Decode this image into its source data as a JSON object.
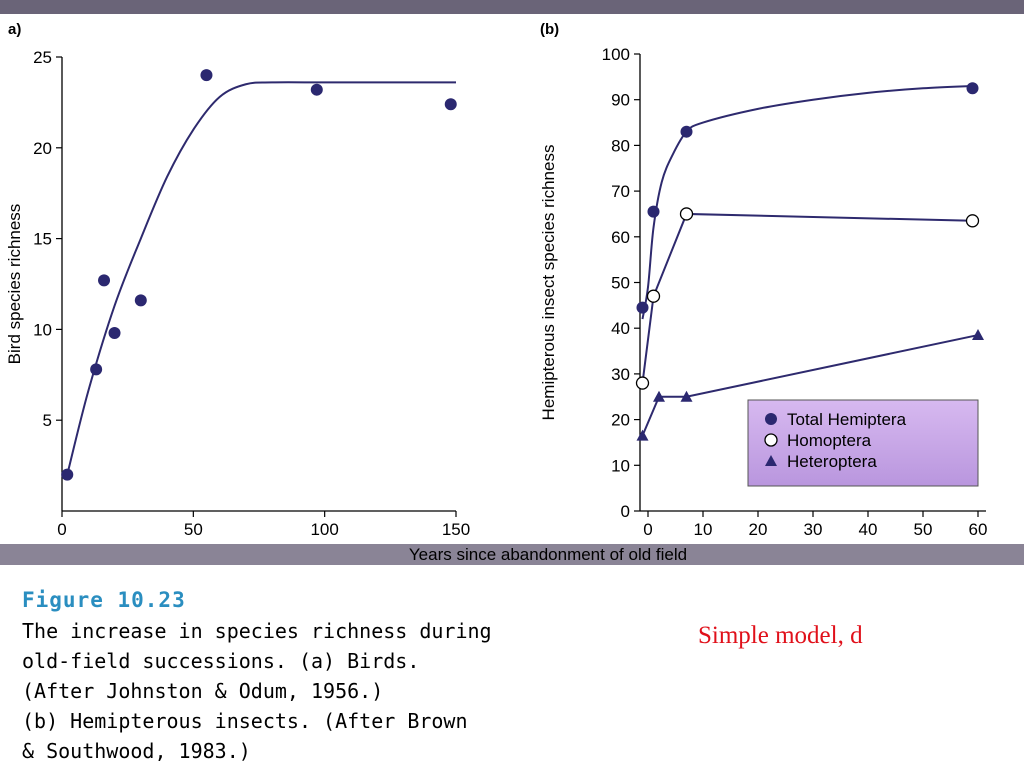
{
  "figure": {
    "number": "Figure 10.23",
    "caption_lines": [
      "The increase in species richness during",
      "old-field successions. (a) Birds.",
      "(After Johnston & Odum, 1956.)",
      "(b) Hemipterous insects. (After Brown",
      "& Southwood, 1983.)"
    ]
  },
  "note": "Simple model, d",
  "shared_xlabel": "Years since abandonment of old field",
  "colors": {
    "background_scan": "#8a8496",
    "plot_paper": "#ffffff",
    "curve": "#2e2a6e",
    "marker": "#2b2870",
    "legend_box": "#c9a8e6",
    "note": "#e0101a",
    "figure_number": "#2a8ec0"
  },
  "chart_data": [
    {
      "panel_label": "a)",
      "type": "scatter",
      "title": "",
      "xlabel": "",
      "ylabel": "Bird species richness",
      "xlim": [
        0,
        150
      ],
      "ylim": [
        0,
        25
      ],
      "xticks": [
        0,
        50,
        100,
        150
      ],
      "yticks": [
        5,
        10,
        15,
        20,
        25
      ],
      "grid": false,
      "series": [
        {
          "marker": "filled-circle",
          "points": [
            [
              2,
              2
            ],
            [
              13,
              7.8
            ],
            [
              16,
              12.7
            ],
            [
              20,
              9.8
            ],
            [
              30,
              11.6
            ],
            [
              55,
              24
            ],
            [
              97,
              23.2
            ],
            [
              148,
              22.4
            ]
          ]
        }
      ],
      "fit_curve": {
        "points": [
          [
            2,
            2
          ],
          [
            10,
            6.6
          ],
          [
            20,
            11.3
          ],
          [
            30,
            15
          ],
          [
            40,
            18.4
          ],
          [
            50,
            21
          ],
          [
            60,
            22.8
          ],
          [
            70,
            23.5
          ],
          [
            80,
            23.6
          ],
          [
            100,
            23.6
          ],
          [
            125,
            23.6
          ],
          [
            150,
            23.6
          ]
        ]
      }
    },
    {
      "panel_label": "(b)",
      "type": "line",
      "title": "",
      "xlabel": "",
      "ylabel": "Hemipterous insect species richness",
      "xlim": [
        -1,
        61
      ],
      "ylim": [
        0,
        100
      ],
      "xticks": [
        0,
        10,
        20,
        30,
        40,
        50,
        60
      ],
      "yticks": [
        0,
        10,
        20,
        30,
        40,
        50,
        60,
        70,
        80,
        90,
        100
      ],
      "grid": false,
      "legend_position": "bottom-right",
      "series": [
        {
          "name": "Total Hemiptera",
          "marker": "filled-circle",
          "curve": "smooth",
          "points": [
            [
              -1,
              44.5
            ],
            [
              1,
              65.5
            ],
            [
              7,
              83
            ],
            [
              59,
              92.5
            ]
          ],
          "curve_points": [
            [
              -1,
              42
            ],
            [
              0,
              49
            ],
            [
              1,
              62
            ],
            [
              2.5,
              72
            ],
            [
              4.5,
              78
            ],
            [
              7,
              83
            ],
            [
              10,
              85
            ],
            [
              20,
              88
            ],
            [
              30,
              90
            ],
            [
              40,
              91.5
            ],
            [
              50,
              92.5
            ],
            [
              59,
              93
            ]
          ]
        },
        {
          "name": "Homoptera",
          "marker": "open-circle",
          "curve": "straight",
          "points": [
            [
              -1,
              28
            ],
            [
              1,
              47
            ],
            [
              7,
              65
            ],
            [
              59,
              63.5
            ]
          ]
        },
        {
          "name": "Heteroptera",
          "marker": "filled-triangle",
          "curve": "straight",
          "points": [
            [
              -1,
              16.5
            ],
            [
              2,
              25
            ],
            [
              7,
              25
            ],
            [
              60,
              38.5
            ]
          ]
        }
      ]
    }
  ]
}
